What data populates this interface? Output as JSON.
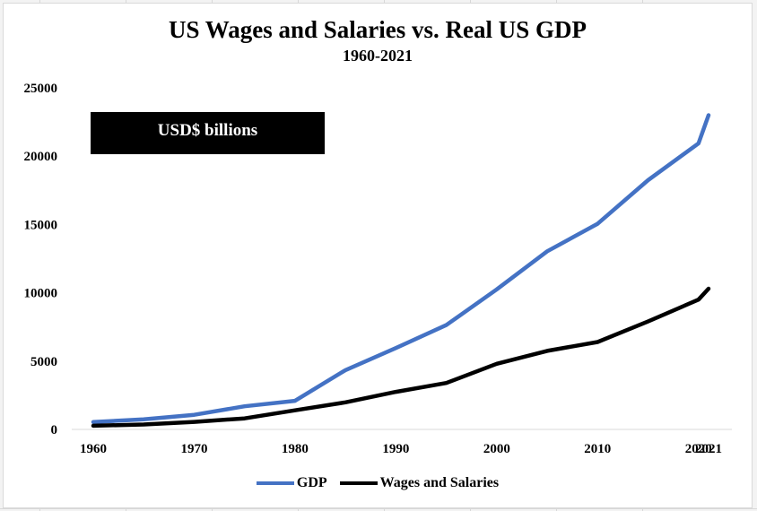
{
  "chart_data": {
    "type": "line",
    "title": "US Wages and Salaries vs. Real US GDP",
    "subtitle": "1960-2021",
    "annotation": "USD$ billions",
    "xlabel": "",
    "ylabel": "",
    "x_ticks": [
      "1960",
      "1970",
      "1980",
      "1990",
      "2000",
      "2010",
      "2020",
      "2021"
    ],
    "y_ticks": [
      "0",
      "5000",
      "10000",
      "15000",
      "20000",
      "25000"
    ],
    "ylim": [
      0,
      25000
    ],
    "grid": false,
    "legend_position": "bottom",
    "x": [
      1960,
      1965,
      1970,
      1975,
      1980,
      1985,
      1990,
      1995,
      2000,
      2005,
      2010,
      2015,
      2020,
      2021
    ],
    "series": [
      {
        "name": "GDP",
        "color": "#4472c4",
        "values": [
          540,
          740,
          1070,
          1690,
          2090,
          4340,
          5960,
          7640,
          10250,
          13040,
          15050,
          18240,
          20940,
          23000
        ]
      },
      {
        "name": "Wages and Salaries",
        "color": "#000000",
        "values": [
          270,
          360,
          550,
          810,
          1400,
          1980,
          2750,
          3400,
          4800,
          5750,
          6400,
          7900,
          9500,
          10300
        ]
      }
    ]
  }
}
